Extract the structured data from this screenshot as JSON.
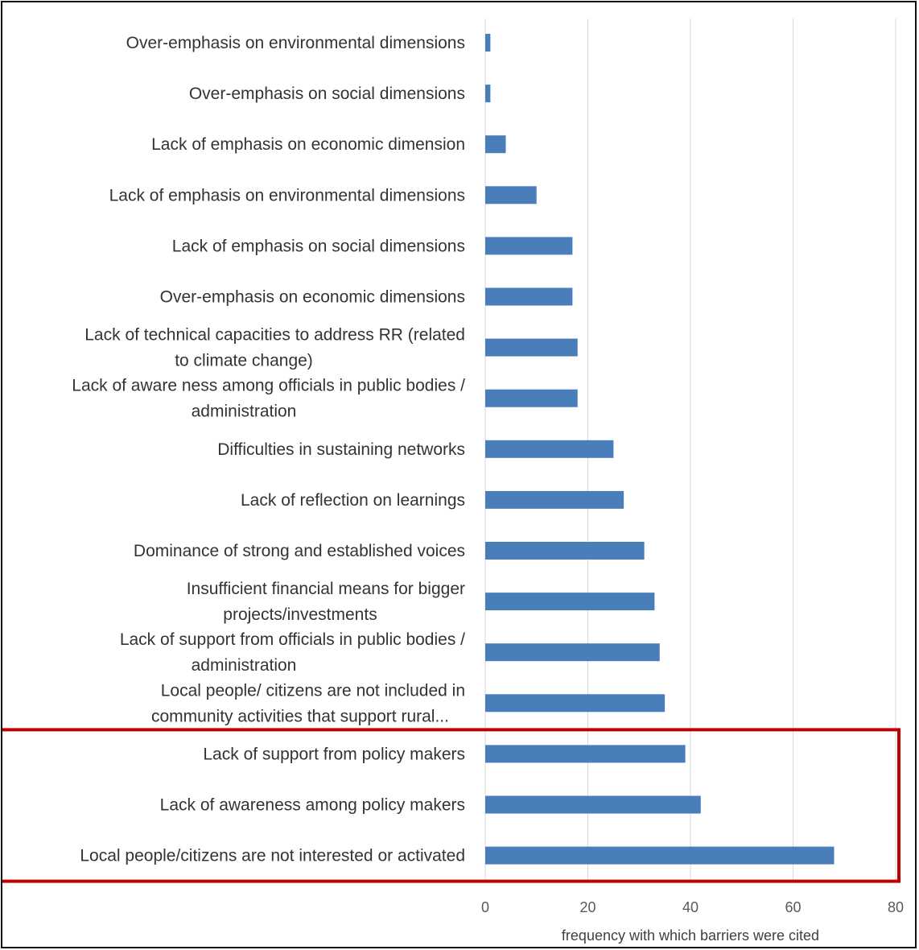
{
  "chart_data": {
    "type": "bar",
    "orientation": "horizontal",
    "categories": [
      [
        "Over-emphasis on environmental dimensions"
      ],
      [
        "Over-emphasis on social dimensions"
      ],
      [
        "Lack of emphasis on economic dimension"
      ],
      [
        "Lack of emphasis on environmental dimensions"
      ],
      [
        "Lack of emphasis on social dimensions"
      ],
      [
        "Over-emphasis on economic dimensions"
      ],
      [
        "Lack of technical capacities to address RR (related",
        "to climate change)"
      ],
      [
        "Lack of aware ness among officials in public bodies /",
        "administration"
      ],
      [
        "Difficulties in sustaining networks"
      ],
      [
        "Lack of reflection on learnings"
      ],
      [
        "Dominance of strong and established voices"
      ],
      [
        "Insufficient financial means for bigger",
        "projects/investments"
      ],
      [
        "Lack of support from officials in public bodies /",
        "administration"
      ],
      [
        "Local people/ citizens are not included in",
        "community activities that support rural..."
      ],
      [
        "Lack of support from policy makers"
      ],
      [
        "Lack of awareness among policy makers"
      ],
      [
        "Local people/citizens are not interested or activated"
      ]
    ],
    "values": [
      1,
      1,
      4,
      10,
      17,
      17,
      18,
      18,
      25,
      27,
      31,
      33,
      34,
      35,
      39,
      42,
      68
    ],
    "xlabel": "frequency with which barriers were cited",
    "ylabel": "",
    "xlim": [
      0,
      80
    ],
    "xticks": [
      0,
      20,
      40,
      60,
      80
    ],
    "grid": "vertical",
    "bar_color": "#4a7ebb",
    "grid_color": "#d9d9d9",
    "highlight": {
      "categories": [
        "Lack of support from policy makers",
        "Lack of awareness among policy makers",
        "Local people/citizens are not interested or activated"
      ],
      "color": "#c00000"
    }
  }
}
